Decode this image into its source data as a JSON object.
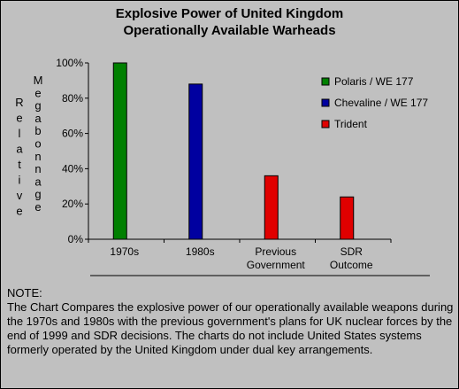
{
  "title": {
    "line1": "Explosive Power of United Kingdom",
    "line2": "Operationally Available Warheads"
  },
  "chart_data": {
    "type": "bar",
    "title": "Explosive Power of United Kingdom Operationally Available Warheads",
    "ylabel_left": "Relative",
    "ylabel_right": "Megabonnage",
    "ylim": [
      0,
      100
    ],
    "yticks": [
      "0%",
      "20%",
      "40%",
      "60%",
      "80%",
      "100%"
    ],
    "categories": [
      {
        "lines": [
          "1970s"
        ]
      },
      {
        "lines": [
          "1980s"
        ]
      },
      {
        "lines": [
          "Previous",
          "Government"
        ]
      },
      {
        "lines": [
          "SDR",
          "Outcome"
        ]
      }
    ],
    "bars": [
      {
        "category": 0,
        "series": 0,
        "value": 100
      },
      {
        "category": 1,
        "series": 1,
        "value": 88
      },
      {
        "category": 2,
        "series": 2,
        "value": 36
      },
      {
        "category": 3,
        "series": 2,
        "value": 24
      }
    ],
    "series": [
      {
        "name": "Polaris / WE 177",
        "color": "#008000"
      },
      {
        "name": "Chevaline / WE 177",
        "color": "#0000a0"
      },
      {
        "name": "Trident",
        "color": "#e00000"
      }
    ],
    "legend_position": "top-right",
    "grid": false
  },
  "note": {
    "heading": "NOTE:",
    "body": "The Chart Compares the explosive power of our operationally available weapons during the 1970s and 1980s with the previous government's plans for UK nuclear forces by the end of 1999 and SDR decisions. The charts do not include United States systems formerly operated by the United Kingdom under dual key arrangements."
  }
}
